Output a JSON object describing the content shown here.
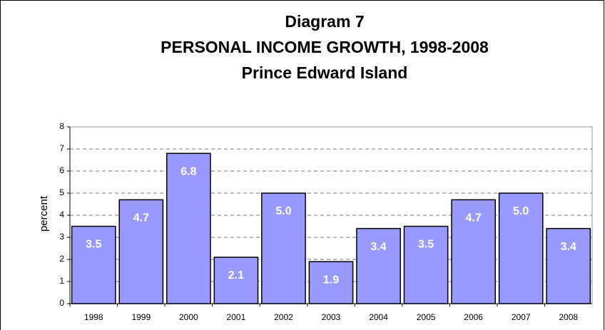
{
  "chart_data": {
    "type": "bar",
    "title": [
      "Diagram 7",
      "PERSONAL INCOME GROWTH, 1998-2008",
      "Prince Edward Island"
    ],
    "y_label": "percent",
    "categories": [
      "1998",
      "1999",
      "2000",
      "2001",
      "2002",
      "2003",
      "2004",
      "2005",
      "2006",
      "2007",
      "2008"
    ],
    "values": [
      3.5,
      4.7,
      6.8,
      2.1,
      5.0,
      1.9,
      3.4,
      3.5,
      4.7,
      5.0,
      3.4
    ],
    "value_labels": [
      "3.5",
      "4.7",
      "6.8",
      "2.1",
      "5.0",
      "1.9",
      "3.4",
      "3.5",
      "4.7",
      "5.0",
      "3.4"
    ],
    "color": "#9999ff",
    "ylim": [
      0,
      8
    ],
    "yticks": [
      0,
      1,
      2,
      3,
      4,
      5,
      6,
      7,
      8
    ],
    "grid": true
  }
}
